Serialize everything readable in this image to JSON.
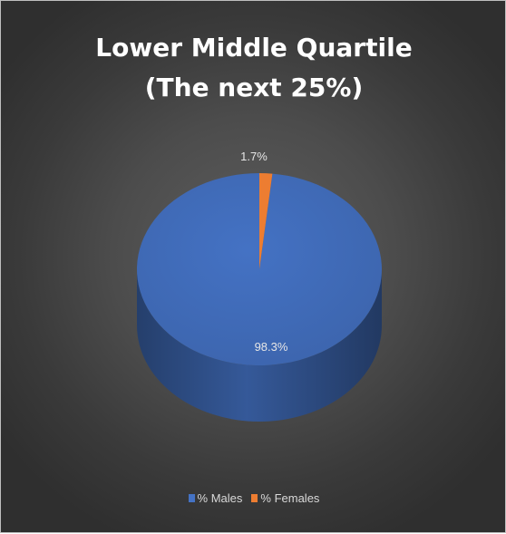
{
  "chart_data": {
    "type": "pie",
    "title": [
      "Lower Middle Quartile",
      "(The next 25%)"
    ],
    "categories": [
      "% Males",
      "% Females"
    ],
    "values": [
      98.3,
      1.7
    ],
    "data_labels": [
      "98.3%",
      "1.7%"
    ],
    "colors": [
      "#4472C4",
      "#ED7D31"
    ],
    "legend_position": "bottom",
    "style": "3d"
  }
}
